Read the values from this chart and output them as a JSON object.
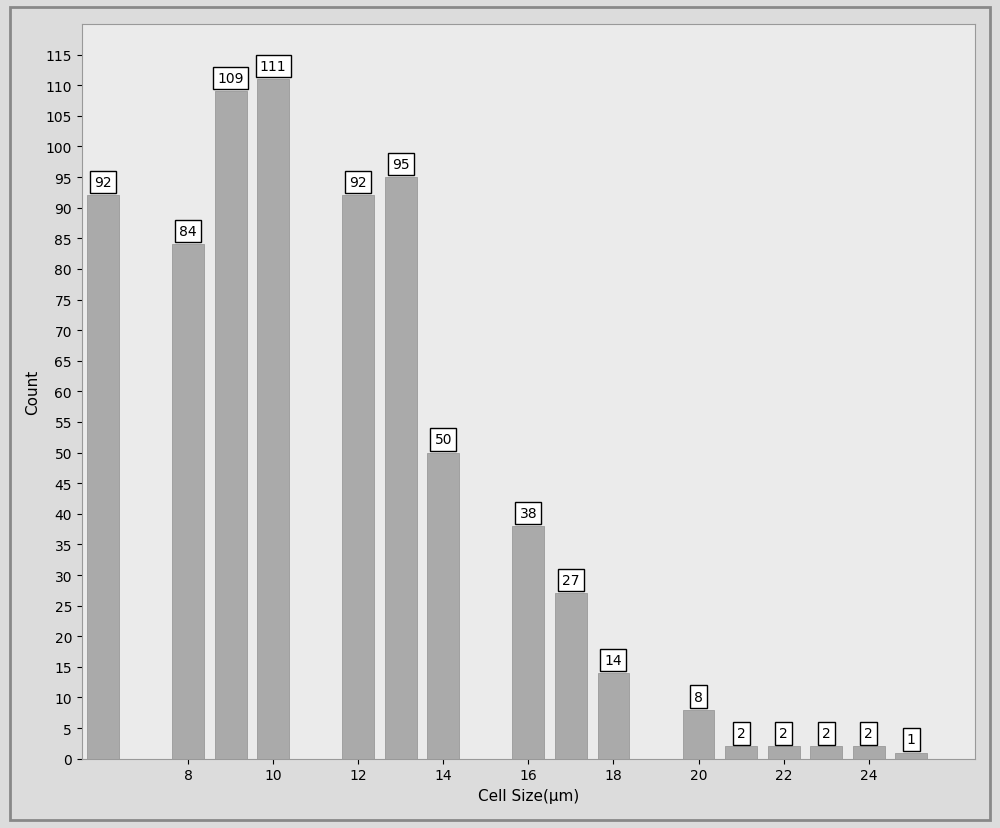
{
  "categories": [
    6,
    8,
    9,
    10,
    12,
    13,
    14,
    16,
    17,
    18,
    20,
    21,
    22,
    23,
    24,
    25
  ],
  "values": [
    92,
    84,
    109,
    111,
    92,
    95,
    50,
    38,
    27,
    14,
    8,
    2,
    2,
    2,
    2,
    1
  ],
  "bar_color": "#aaaaaa",
  "bar_edgecolor": "#999999",
  "xlabel": "Cell Size(μm)",
  "ylabel": "Count",
  "ylim": [
    0,
    120
  ],
  "yticks": [
    0,
    5,
    10,
    15,
    20,
    25,
    30,
    35,
    40,
    45,
    50,
    55,
    60,
    65,
    70,
    75,
    80,
    85,
    90,
    95,
    100,
    105,
    110,
    115
  ],
  "xticks": [
    8,
    10,
    12,
    14,
    16,
    18,
    20,
    22,
    24
  ],
  "xlim": [
    5.5,
    26.5
  ],
  "background_color": "#dcdcdc",
  "plot_background_color": "#ebebeb",
  "annotation_display": [
    92,
    84,
    109,
    111,
    92,
    95,
    50,
    38,
    27,
    14,
    8,
    2,
    2,
    2,
    2,
    1
  ],
  "bar_width": 0.75,
  "label_fontsize": 11,
  "tick_fontsize": 10,
  "annot_fontsize": 10
}
